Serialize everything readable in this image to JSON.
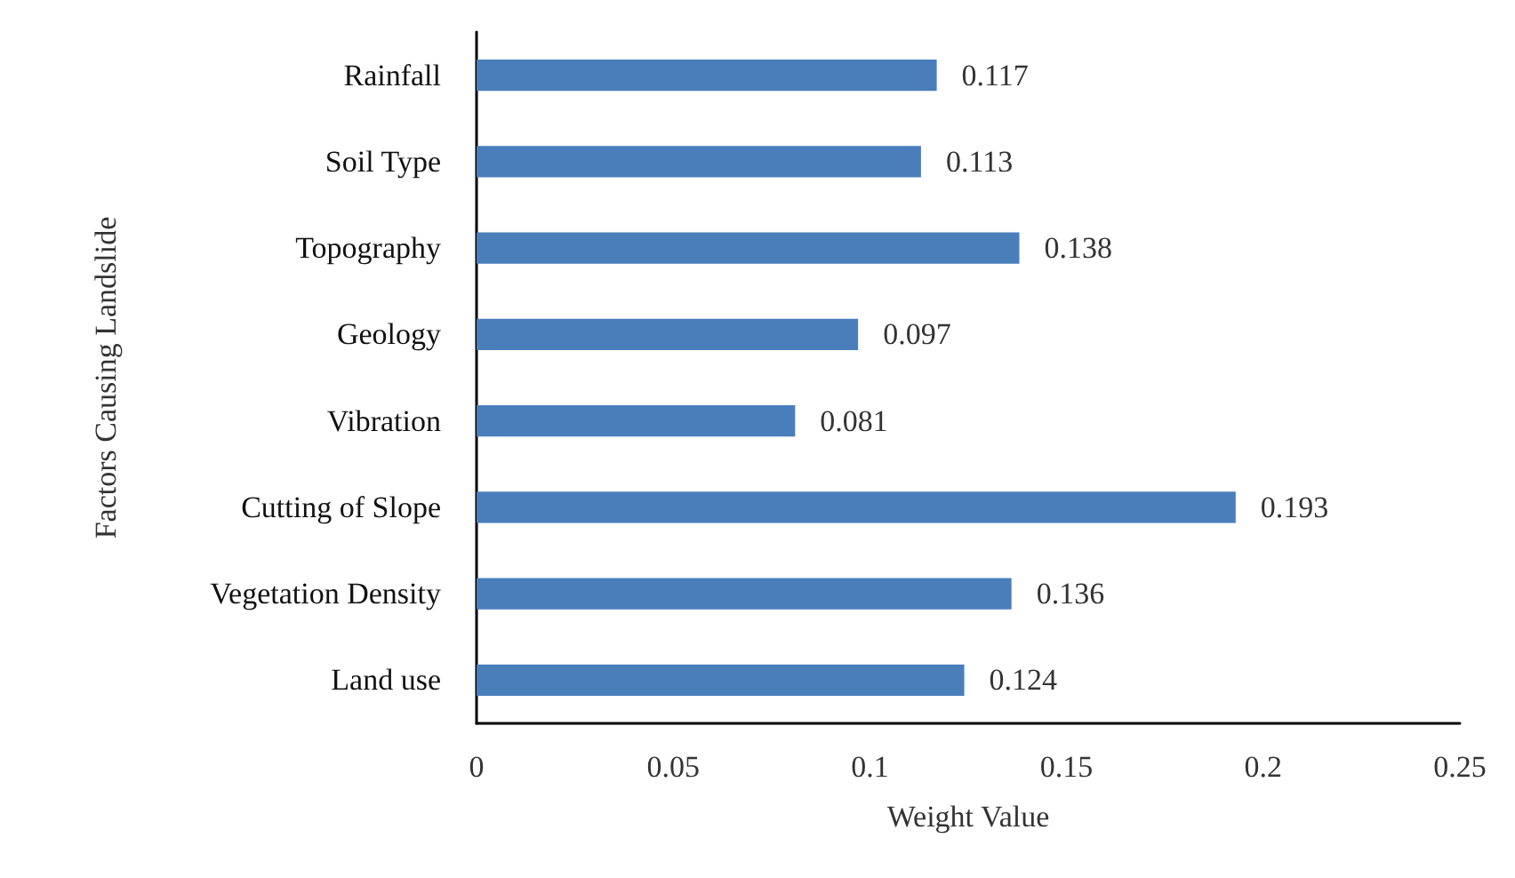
{
  "chart_data": {
    "type": "bar",
    "orientation": "horizontal",
    "xlabel": "Weight Value",
    "ylabel": "Factors Causing Landslide",
    "categories": [
      "Rainfall",
      "Soil Type",
      "Topography",
      "Geology",
      "Vibration",
      "Cutting of Slope",
      "Vegetation Density",
      "Land use"
    ],
    "values": [
      0.117,
      0.113,
      0.138,
      0.097,
      0.081,
      0.193,
      0.136,
      0.124
    ],
    "color": "#4a7ebb",
    "xlim": [
      0,
      0.25
    ],
    "xticks": [
      0,
      0.05,
      0.1,
      0.15,
      0.2,
      0.25
    ],
    "data_labels": true
  }
}
